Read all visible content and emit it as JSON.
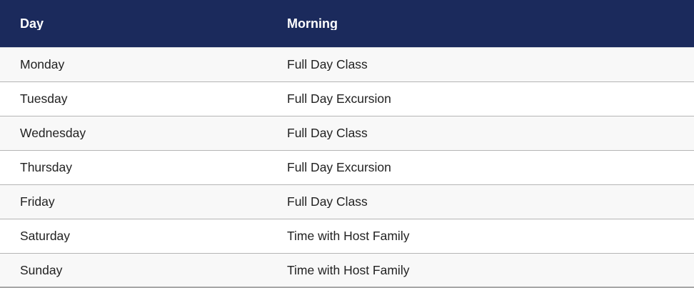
{
  "table": {
    "columns": [
      {
        "label": "Day"
      },
      {
        "label": "Morning"
      }
    ],
    "rows": [
      {
        "day": "Monday",
        "morning": "Full Day Class"
      },
      {
        "day": "Tuesday",
        "morning": "Full Day Excursion"
      },
      {
        "day": "Wednesday",
        "morning": "Full Day Class"
      },
      {
        "day": "Thursday",
        "morning": "Full Day Excursion"
      },
      {
        "day": "Friday",
        "morning": "Full Day Class"
      },
      {
        "day": "Saturday",
        "morning": "Time with Host Family"
      },
      {
        "day": "Sunday",
        "morning": "Time with Host Family"
      }
    ]
  },
  "colors": {
    "header_bg": "#1b2a5c",
    "header_text": "#ffffff",
    "row_stripe": "#f8f8f8",
    "row_border": "#b5b5b5",
    "header_border": "#d9dbe3",
    "body_text": "#222222",
    "bottom_border": "#a6a6a6"
  }
}
